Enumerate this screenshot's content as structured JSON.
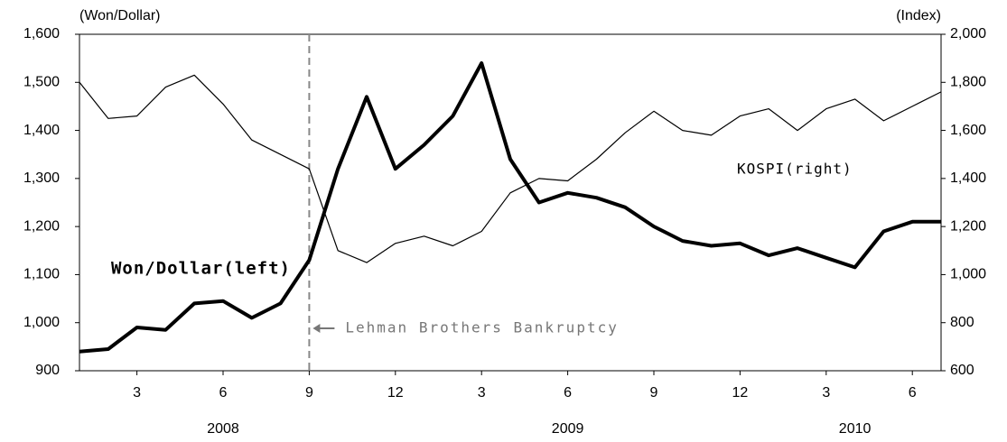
{
  "chart_data": {
    "type": "line",
    "y_axis_label": "(Won/Dollar)",
    "y2_axis_label": "(Index)",
    "x": [
      "2008-01",
      "2008-02",
      "2008-03",
      "2008-04",
      "2008-05",
      "2008-06",
      "2008-07",
      "2008-08",
      "2008-09",
      "2008-10",
      "2008-11",
      "2008-12",
      "2009-01",
      "2009-02",
      "2009-03",
      "2009-04",
      "2009-05",
      "2009-06",
      "2009-07",
      "2009-08",
      "2009-09",
      "2009-10",
      "2009-11",
      "2009-12",
      "2010-01",
      "2010-02",
      "2010-03",
      "2010-04",
      "2010-05",
      "2010-06",
      "2010-07"
    ],
    "series": [
      {
        "name": "Won/Dollar(left)",
        "color": "#000000",
        "axis": "y",
        "values": [
          940,
          945,
          990,
          985,
          1040,
          1045,
          1010,
          1040,
          1130,
          1320,
          1470,
          1320,
          1370,
          1430,
          1540,
          1340,
          1250,
          1270,
          1260,
          1240,
          1200,
          1170,
          1160,
          1165,
          1140,
          1155,
          1135,
          1115,
          1190,
          1210,
          1210
        ]
      },
      {
        "name": "KOSPI(right)",
        "color": "#000000",
        "axis": "y2",
        "values": [
          1800,
          1650,
          1660,
          1780,
          1830,
          1710,
          1560,
          1500,
          1440,
          1100,
          1050,
          1130,
          1160,
          1120,
          1180,
          1340,
          1400,
          1390,
          1480,
          1590,
          1680,
          1600,
          1580,
          1660,
          1690,
          1600,
          1690,
          1730,
          1640,
          1700,
          1760
        ]
      }
    ],
    "xlim": [
      "2008-01",
      "2010-07"
    ],
    "xticks": [
      {
        "value": "2008-03",
        "label": "3"
      },
      {
        "value": "2008-06",
        "label": "6"
      },
      {
        "value": "2008-09",
        "label": "9"
      },
      {
        "value": "2008-12",
        "label": "12"
      },
      {
        "value": "2009-03",
        "label": "3"
      },
      {
        "value": "2009-06",
        "label": "6"
      },
      {
        "value": "2009-09",
        "label": "9"
      },
      {
        "value": "2009-12",
        "label": "12"
      },
      {
        "value": "2010-03",
        "label": "3"
      },
      {
        "value": "2010-06",
        "label": "6"
      }
    ],
    "year_labels": [
      {
        "value": "2008-06",
        "label": "2008"
      },
      {
        "value": "2009-06",
        "label": "2009"
      },
      {
        "value": "2010-04",
        "label": "2010"
      }
    ],
    "ylim": [
      900,
      1600
    ],
    "yticks": [
      900,
      {
        "value": 1000,
        "label": "1,000"
      },
      {
        "value": 1100,
        "label": "1,100"
      },
      {
        "value": 1200,
        "label": "1,200"
      },
      {
        "value": 1300,
        "label": "1,300"
      },
      {
        "value": 1400,
        "label": "1,400"
      },
      {
        "value": 1500,
        "label": "1,500"
      },
      {
        "value": 1600,
        "label": "1,600"
      }
    ],
    "y2lim": [
      600,
      2000
    ],
    "y2ticks": [
      600,
      800,
      {
        "value": 1000,
        "label": "1,000"
      },
      {
        "value": 1200,
        "label": "1,200"
      },
      {
        "value": 1400,
        "label": "1,400"
      },
      {
        "value": 1600,
        "label": "1,600"
      },
      {
        "value": 1800,
        "label": "1,800"
      },
      {
        "value": 2000,
        "label": "2,000"
      }
    ],
    "event": {
      "x": "2008-09",
      "text": "Lehman Brothers Bankruptcy"
    },
    "grid": false
  }
}
